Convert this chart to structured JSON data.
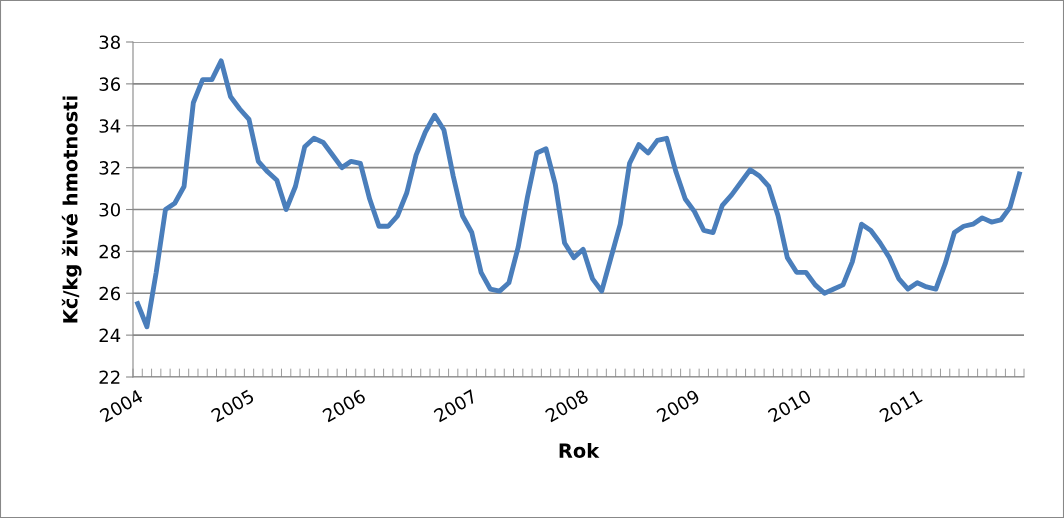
{
  "chart_data": {
    "type": "line",
    "xlabel": "Rok",
    "ylabel": "Kč/kg živé hmotnosti",
    "categories": [
      "2004",
      null,
      null,
      null,
      null,
      null,
      null,
      null,
      null,
      null,
      null,
      null,
      "2005",
      null,
      null,
      null,
      null,
      null,
      null,
      null,
      null,
      null,
      null,
      null,
      "2006",
      null,
      null,
      null,
      null,
      null,
      null,
      null,
      null,
      null,
      null,
      null,
      "2007",
      null,
      null,
      null,
      null,
      null,
      null,
      null,
      null,
      null,
      null,
      null,
      "2008",
      null,
      null,
      null,
      null,
      null,
      null,
      null,
      null,
      null,
      null,
      null,
      "2009",
      null,
      null,
      null,
      null,
      null,
      null,
      null,
      null,
      null,
      null,
      null,
      "2010",
      null,
      null,
      null,
      null,
      null,
      null,
      null,
      null,
      null,
      null,
      null,
      "2011",
      null,
      null,
      null,
      null,
      null,
      null,
      null,
      null,
      null,
      null,
      null
    ],
    "series": [
      {
        "color": "#4a7ebb",
        "values": [
          25.5,
          24.4,
          27,
          30,
          30.3,
          31.1,
          35.1,
          36.2,
          36.2,
          37.1,
          35.4,
          34.8,
          34.3,
          32.3,
          31.8,
          31.4,
          30.0,
          31.1,
          33.0,
          33.4,
          33.2,
          32.6,
          32.0,
          32.3,
          32.2,
          30.5,
          29.2,
          29.2,
          29.7,
          30.8,
          32.6,
          33.7,
          34.5,
          33.8,
          31.6,
          29.7,
          28.9,
          27.0,
          26.2,
          26.1,
          26.5,
          28.2,
          30.6,
          32.7,
          32.9,
          31.2,
          28.4,
          27.7,
          28.1,
          26.7,
          26.1,
          27.7,
          29.3,
          32.2,
          33.1,
          32.7,
          33.3,
          33.4,
          31.8,
          30.5,
          29.9,
          29.0,
          28.9,
          30.2,
          30.7,
          31.3,
          31.9,
          31.6,
          31.1,
          29.7,
          27.7,
          27.0,
          27.0,
          26.4,
          26.0,
          26.2,
          26.4,
          27.5,
          29.3,
          29.0,
          28.4,
          27.7,
          26.7,
          26.2,
          26.5,
          26.3,
          26.2,
          27.4,
          28.9,
          29.2,
          29.3,
          29.6,
          29.4,
          29.5,
          30.1,
          31.7
        ]
      }
    ],
    "ylim": [
      22,
      38
    ],
    "yticks": [
      22,
      24,
      26,
      28,
      30,
      32,
      34,
      36,
      38
    ],
    "grid": "y",
    "marker": "none",
    "line_style": "solid",
    "legend": false
  }
}
